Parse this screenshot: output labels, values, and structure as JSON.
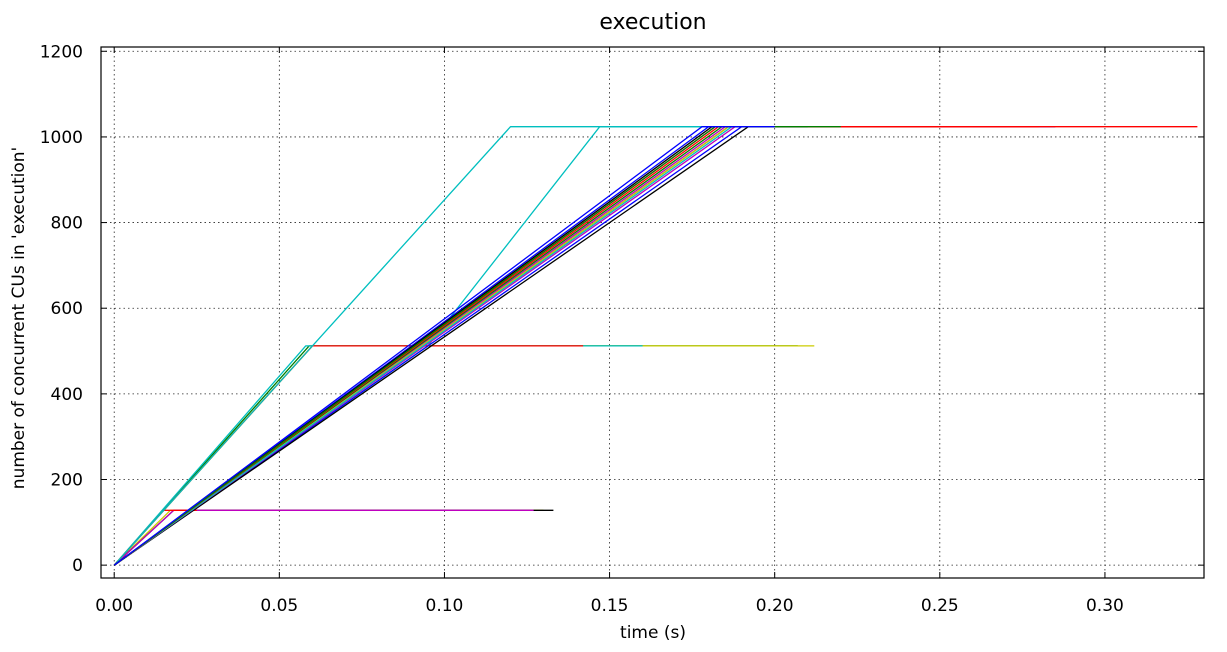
{
  "chart_data": {
    "type": "line",
    "title": "execution",
    "xlabel": "time (s)",
    "ylabel": "number of concurrent CUs in 'execution'",
    "xlim": [
      -0.004,
      0.33
    ],
    "ylim": [
      -30,
      1210
    ],
    "xticks": [
      0.0,
      0.05,
      0.1,
      0.15,
      0.2,
      0.25,
      0.3
    ],
    "xtick_labels": [
      "0.00",
      "0.05",
      "0.10",
      "0.15",
      "0.20",
      "0.25",
      "0.30"
    ],
    "yticks": [
      0,
      200,
      400,
      600,
      800,
      1000,
      1200
    ],
    "ytick_labels": [
      "0",
      "200",
      "400",
      "600",
      "800",
      "1000",
      "1200"
    ],
    "grid": true,
    "legend": "none",
    "series": [
      {
        "color": "#cccc00",
        "x": [
          0.0,
          0.017,
          0.13
        ],
        "y": [
          0,
          128,
          128
        ]
      },
      {
        "color": "#000000",
        "x": [
          0.0,
          0.018,
          0.133
        ],
        "y": [
          0,
          128,
          128
        ]
      },
      {
        "color": "#bf00bf",
        "x": [
          0.0,
          0.018,
          0.127
        ],
        "y": [
          0,
          128,
          128
        ]
      },
      {
        "color": "#ff0000",
        "x": [
          0.0,
          0.015,
          0.025
        ],
        "y": [
          0,
          128,
          128
        ]
      },
      {
        "color": "#008000",
        "x": [
          0.0,
          0.059,
          0.207
        ],
        "y": [
          0,
          512,
          512
        ]
      },
      {
        "color": "#cccc00",
        "x": [
          0.0,
          0.06,
          0.212
        ],
        "y": [
          0,
          512,
          512
        ]
      },
      {
        "color": "#00bfbf",
        "x": [
          0.0,
          0.058,
          0.16
        ],
        "y": [
          0,
          512,
          512
        ]
      },
      {
        "color": "#ff0000",
        "x": [
          0.0,
          0.06,
          0.142
        ],
        "y": [
          0,
          512,
          512
        ]
      },
      {
        "color": "#00bfbf",
        "x": [
          0.0,
          0.06,
          0.12,
          0.2
        ],
        "y": [
          0,
          512,
          1024,
          1024
        ]
      },
      {
        "color": "#00bfbf",
        "x": [
          0.0,
          0.095,
          0.147,
          0.2
        ],
        "y": [
          0,
          512,
          1024,
          1024
        ]
      },
      {
        "color": "#0000ff",
        "x": [
          0.0,
          0.18,
          0.285
        ],
        "y": [
          0,
          1024,
          1024
        ]
      },
      {
        "color": "#0000ff",
        "x": [
          0.0,
          0.19,
          0.27
        ],
        "y": [
          0,
          1024,
          1024
        ]
      },
      {
        "color": "#000000",
        "x": [
          0.0,
          0.192,
          0.24
        ],
        "y": [
          0,
          1024,
          1024
        ]
      },
      {
        "color": "#000000",
        "x": [
          0.0,
          0.186,
          0.23
        ],
        "y": [
          0,
          1024,
          1024
        ]
      },
      {
        "color": "#bf00bf",
        "x": [
          0.0,
          0.188,
          0.26
        ],
        "y": [
          0,
          1024,
          1024
        ]
      },
      {
        "color": "#bf00bf",
        "x": [
          0.0,
          0.185,
          0.22
        ],
        "y": [
          0,
          1024,
          1024
        ]
      },
      {
        "color": "#cccc00",
        "x": [
          0.0,
          0.186,
          0.23
        ],
        "y": [
          0,
          1024,
          1024
        ]
      },
      {
        "color": "#008000",
        "x": [
          0.0,
          0.184,
          0.25
        ],
        "y": [
          0,
          1024,
          1024
        ]
      },
      {
        "color": "#00bfbf",
        "x": [
          0.0,
          0.187,
          0.22
        ],
        "y": [
          0,
          1024,
          1024
        ]
      },
      {
        "color": "#ff0000",
        "x": [
          0.0,
          0.183,
          0.328
        ],
        "y": [
          0,
          1024,
          1024
        ]
      },
      {
        "color": "#ff0000",
        "x": [
          0.0,
          0.182,
          0.28
        ],
        "y": [
          0,
          1024,
          1024
        ]
      },
      {
        "color": "#000000",
        "x": [
          0.0,
          0.181,
          0.21
        ],
        "y": [
          0,
          1024,
          1024
        ]
      },
      {
        "color": "#008000",
        "x": [
          0.0,
          0.182,
          0.22
        ],
        "y": [
          0,
          1024,
          1024
        ]
      },
      {
        "color": "#0000ff",
        "x": [
          0.0,
          0.178,
          0.2
        ],
        "y": [
          0,
          1024,
          1024
        ]
      }
    ]
  }
}
